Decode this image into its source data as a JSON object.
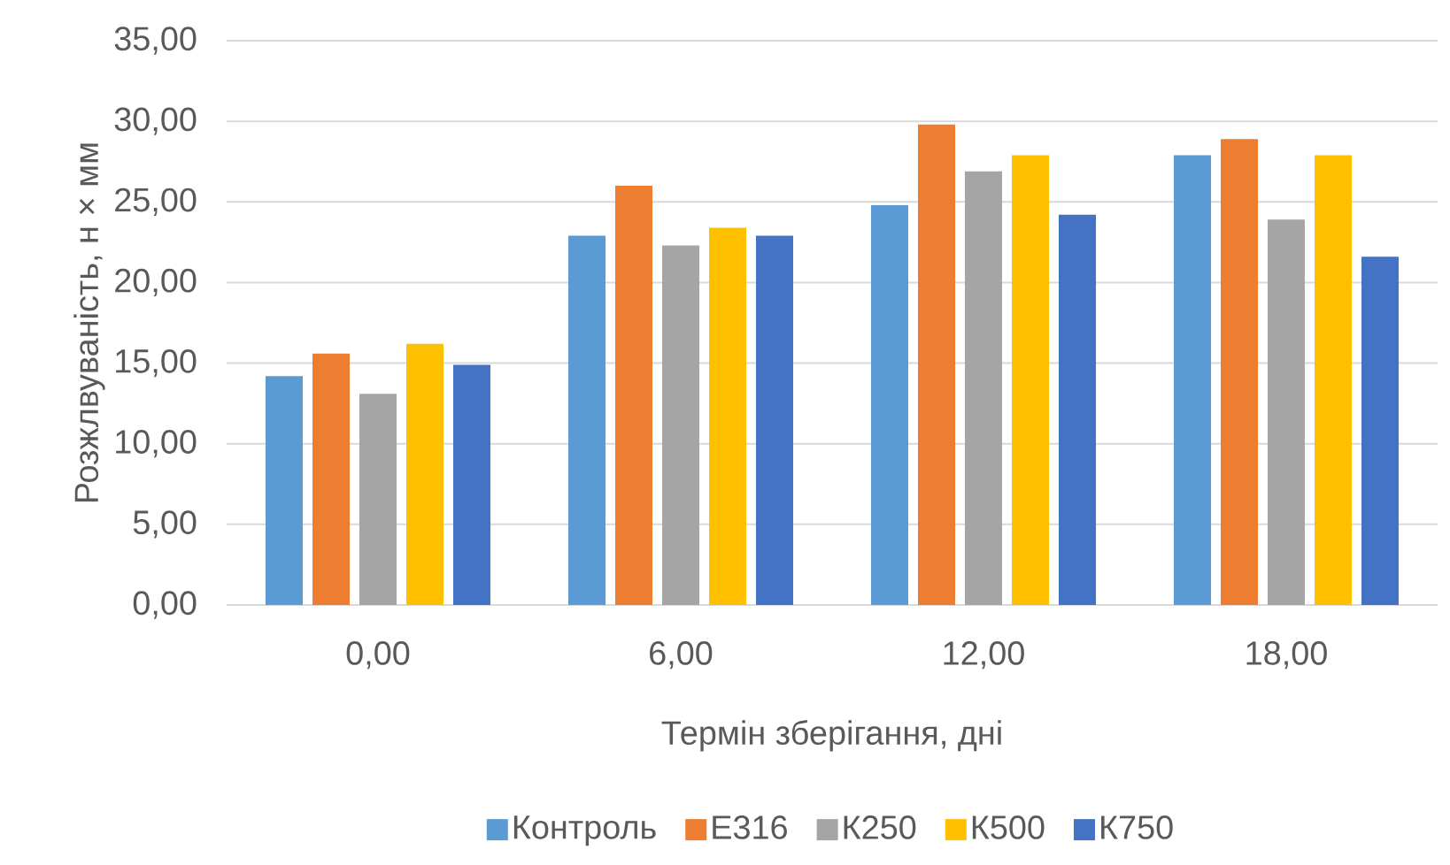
{
  "chart_data": {
    "type": "bar",
    "xlabel": "Термін зберігання, дні",
    "ylabel": "Розжлвуваність, н × мм",
    "categories": [
      "0,00",
      "6,00",
      "12,00",
      "18,00"
    ],
    "series": [
      {
        "name": "Контроль",
        "color": "#5b9bd5",
        "values": [
          14.2,
          22.9,
          24.8,
          27.9
        ]
      },
      {
        "name": "Е316",
        "color": "#ed7d31",
        "values": [
          15.6,
          26.0,
          29.8,
          28.9
        ]
      },
      {
        "name": "К250",
        "color": "#a5a5a5",
        "values": [
          13.1,
          22.3,
          26.9,
          23.9
        ]
      },
      {
        "name": "К500",
        "color": "#ffc000",
        "values": [
          16.2,
          23.4,
          27.9,
          27.9
        ]
      },
      {
        "name": "К750",
        "color": "#4472c4",
        "values": [
          14.9,
          22.9,
          24.2,
          21.6
        ]
      }
    ],
    "ylim": [
      0,
      35
    ],
    "yticks": [
      {
        "value": 0,
        "label": "0,00"
      },
      {
        "value": 5,
        "label": "5,00"
      },
      {
        "value": 10,
        "label": "10,00"
      },
      {
        "value": 15,
        "label": "15,00"
      },
      {
        "value": 20,
        "label": "20,00"
      },
      {
        "value": 25,
        "label": "25,00"
      },
      {
        "value": 30,
        "label": "30,00"
      },
      {
        "value": 35,
        "label": "35,00"
      }
    ],
    "grid": "y",
    "legend": "bottom"
  }
}
